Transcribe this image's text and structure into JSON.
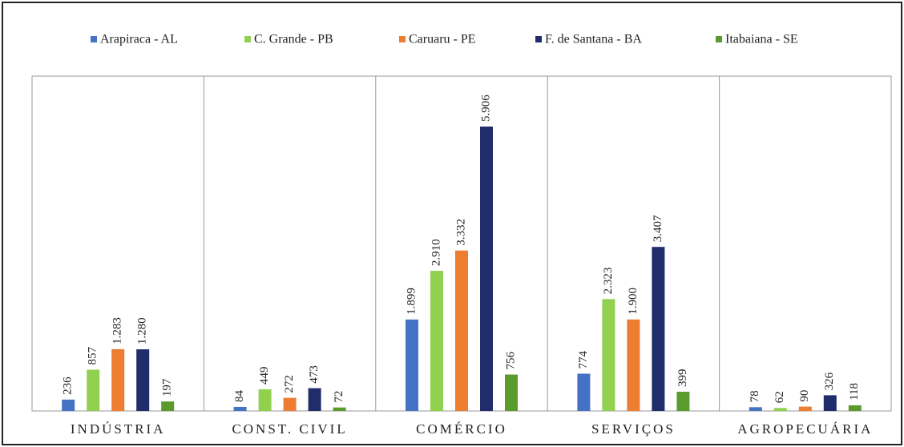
{
  "chart_data": {
    "type": "bar",
    "categories": [
      "INDÚSTRIA",
      "CONST. CIVIL",
      "COMÉRCIO",
      "SERVIÇOS",
      "AGROPECUÁRIA"
    ],
    "series": [
      {
        "name": "Arapiraca - AL",
        "color": "#4472c4",
        "values": [
          236,
          84,
          1899,
          774,
          78
        ],
        "value_labels": [
          "236",
          "84",
          "1.899",
          "774",
          "78"
        ]
      },
      {
        "name": "C. Grande - PB",
        "color": "#92d050",
        "values": [
          857,
          449,
          2910,
          2323,
          62
        ],
        "value_labels": [
          "857",
          "449",
          "2.910",
          "2.323",
          "62"
        ]
      },
      {
        "name": "Caruaru - PE",
        "color": "#ed7d31",
        "values": [
          1283,
          272,
          3332,
          1900,
          90
        ],
        "value_labels": [
          "1.283",
          "272",
          "3.332",
          "1.900",
          "90"
        ]
      },
      {
        "name": "F. de Santana - BA",
        "color": "#1f2d6b",
        "values": [
          1280,
          473,
          5906,
          3407,
          326
        ],
        "value_labels": [
          "1.280",
          "473",
          "5.906",
          "3.407",
          "326"
        ]
      },
      {
        "name": "Itabaiana - SE",
        "color": "#5b9b2d",
        "values": [
          197,
          72,
          756,
          399,
          118
        ],
        "value_labels": [
          "197",
          "72",
          "756",
          "399",
          "118"
        ]
      }
    ],
    "legend": "top",
    "grid": false
  }
}
